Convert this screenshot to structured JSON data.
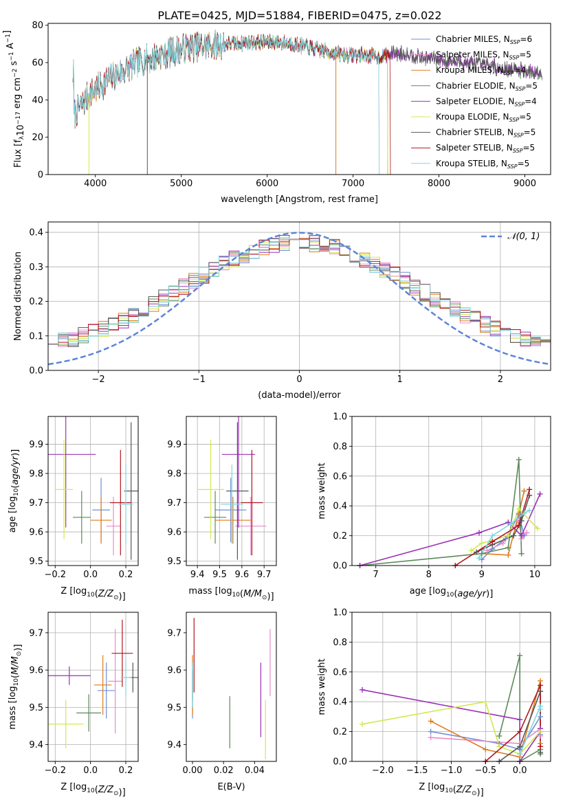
{
  "figure": {
    "title": "PLATE=0425, MJD=51884, FIBERID=0475, z=0.022"
  },
  "models": [
    {
      "name": "Chabrier MILES",
      "nssp": "6",
      "color": "#6c8fd6"
    },
    {
      "name": "Salpeter MILES",
      "nssp": "5",
      "color": "#e98bc9"
    },
    {
      "name": "Kroupa MILES",
      "nssp": "4",
      "color": "#e07b1c"
    },
    {
      "name": "Chabrier ELODIE",
      "nssp": "5",
      "color": "#5a8a5a"
    },
    {
      "name": "Salpeter ELODIE",
      "nssp": "4",
      "color": "#9b30b6"
    },
    {
      "name": "Kroupa ELODIE",
      "nssp": "5",
      "color": "#d4e84c"
    },
    {
      "name": "Chabrier STELIB",
      "nssp": "5",
      "color": "#555555"
    },
    {
      "name": "Salpeter STELIB",
      "nssp": "5",
      "color": "#b0151d"
    },
    {
      "name": "Kroupa STELIB",
      "nssp": "5",
      "color": "#7fd8df"
    }
  ],
  "chart_data": [
    {
      "id": "spectrum",
      "type": "line",
      "xlabel": "wavelength [Angstrom, rest frame]",
      "ylabel": "Flux [f_λ 10^-17 erg cm^-2 s^-1 A^-1]",
      "xlim": [
        3450,
        9300
      ],
      "ylim": [
        0,
        81
      ],
      "xticks": [
        4000,
        5000,
        6000,
        7000,
        8000,
        9000
      ],
      "yticks": [
        0,
        20,
        40,
        60,
        80
      ],
      "continuum": [
        [
          3750,
          32
        ],
        [
          3850,
          38
        ],
        [
          3950,
          44
        ],
        [
          4050,
          47
        ],
        [
          4150,
          51
        ],
        [
          4300,
          55
        ],
        [
          4500,
          60
        ],
        [
          4700,
          63
        ],
        [
          4900,
          66
        ],
        [
          5100,
          68
        ],
        [
          5300,
          69
        ],
        [
          5500,
          70
        ],
        [
          5700,
          70.5
        ],
        [
          5900,
          71
        ],
        [
          6100,
          71
        ],
        [
          6300,
          70
        ],
        [
          6500,
          68
        ],
        [
          6700,
          66
        ],
        [
          6900,
          64
        ],
        [
          7100,
          64
        ],
        [
          7300,
          63
        ],
        [
          7500,
          65
        ],
        [
          7700,
          64
        ],
        [
          7900,
          62
        ],
        [
          8100,
          61
        ],
        [
          8300,
          60
        ],
        [
          8500,
          59
        ],
        [
          8700,
          57
        ],
        [
          8900,
          56
        ],
        [
          9100,
          55
        ],
        [
          9200,
          54
        ]
      ],
      "end_wavelength": [
        7400,
        7300,
        7400,
        9200,
        9200,
        7400,
        9200,
        7430,
        7300
      ],
      "grid": false,
      "legend": "upper right"
    },
    {
      "id": "residuals",
      "type": "histogram",
      "xlabel": "(data-model)/error",
      "ylabel": "Normed distribution",
      "xlim": [
        -2.5,
        2.5
      ],
      "ylim": [
        0,
        0.43
      ],
      "xticks": [
        -2,
        -1,
        0,
        1,
        2
      ],
      "yticks": [
        0.0,
        0.1,
        0.2,
        0.3,
        0.4
      ],
      "bins": 50,
      "reference": {
        "name": "𝒩(0, 1)",
        "mean": 0,
        "sigma": 1,
        "color": "#5b84d8"
      },
      "grid": true,
      "legend": "upper right"
    },
    {
      "id": "age-vs-Z",
      "type": "errorbar",
      "xlabel": "Z [log10(Z/Z⊙)]",
      "ylabel": "age  [log10(age/yr)]",
      "xlim": [
        -0.24,
        0.27
      ],
      "ylim": [
        9.485,
        9.995
      ],
      "xticks": [
        -0.2,
        0.0,
        0.2
      ],
      "yticks": [
        9.5,
        9.6,
        9.7,
        9.8,
        9.9
      ],
      "points": [
        {
          "x": 0.06,
          "xerr": 0.05,
          "y": 9.675,
          "yerr": 0.11
        },
        {
          "x": 0.13,
          "xerr": 0.04,
          "y": 9.62,
          "yerr": 0.1
        },
        {
          "x": 0.06,
          "xerr": 0.06,
          "y": 9.64,
          "yerr": 0.08
        },
        {
          "x": -0.05,
          "xerr": 0.05,
          "y": 9.65,
          "yerr": 0.09
        },
        {
          "x": -0.14,
          "xerr": 0.17,
          "y": 9.865,
          "yerr": 0.25
        },
        {
          "x": -0.15,
          "xerr": 0.05,
          "y": 9.745,
          "yerr": 0.17
        },
        {
          "x": 0.23,
          "xerr": 0.04,
          "y": 9.74,
          "yerr": 0.235
        },
        {
          "x": 0.17,
          "xerr": 0.06,
          "y": 9.7,
          "yerr": 0.18
        },
        {
          "x": 0.2,
          "xerr": 0.04,
          "y": 9.695,
          "yerr": 0.135
        }
      ],
      "grid": true
    },
    {
      "id": "age-vs-mass",
      "type": "errorbar",
      "xlabel": "mass [log10(M/M⊙)]",
      "ylabel": "",
      "xlim": [
        9.35,
        9.755
      ],
      "ylim": [
        9.485,
        9.995
      ],
      "xticks": [
        9.4,
        9.5,
        9.6,
        9.7
      ],
      "yticks": [
        9.5,
        9.6,
        9.7,
        9.8,
        9.9
      ],
      "points": [
        {
          "x": 9.55,
          "xerr": 0.07,
          "y": 9.675,
          "yerr": 0.11
        },
        {
          "x": 9.64,
          "xerr": 0.07,
          "y": 9.62,
          "yerr": 0.1
        },
        {
          "x": 9.56,
          "xerr": 0.08,
          "y": 9.64,
          "yerr": 0.08
        },
        {
          "x": 9.48,
          "xerr": 0.05,
          "y": 9.65,
          "yerr": 0.09
        },
        {
          "x": 9.585,
          "xerr": 0.075,
          "y": 9.865,
          "yerr": 0.25
        },
        {
          "x": 9.46,
          "xerr": 0.06,
          "y": 9.745,
          "yerr": 0.17
        },
        {
          "x": 9.58,
          "xerr": 0.05,
          "y": 9.74,
          "yerr": 0.235
        },
        {
          "x": 9.645,
          "xerr": 0.05,
          "y": 9.7,
          "yerr": 0.18
        },
        {
          "x": 9.555,
          "xerr": 0.05,
          "y": 9.695,
          "yerr": 0.135
        }
      ],
      "grid": true
    },
    {
      "id": "weight-vs-age",
      "type": "line",
      "xlabel": "age  [log10(age/yr)]",
      "ylabel": "mass weight",
      "xlim": [
        6.55,
        10.3
      ],
      "ylim": [
        0,
        1.0
      ],
      "xticks": [
        7,
        8,
        9,
        10
      ],
      "yticks": [
        0.0,
        0.2,
        0.4,
        0.6,
        0.8,
        1.0
      ],
      "series": [
        {
          "x": [
            9.0,
            9.2,
            9.45,
            9.7,
            9.8
          ],
          "y": [
            0.04,
            0.11,
            0.18,
            0.34,
            0.2
          ]
        },
        {
          "x": [
            9.1,
            9.4,
            9.7,
            9.75,
            9.85
          ],
          "y": [
            0.1,
            0.15,
            0.3,
            0.18,
            0.22
          ]
        },
        {
          "x": [
            9.0,
            9.5,
            9.7,
            9.8
          ],
          "y": [
            0.08,
            0.07,
            0.35,
            0.5
          ]
        },
        {
          "x": [
            6.7,
            9.0,
            9.5,
            9.7,
            9.75
          ],
          "y": [
            0.0,
            0.08,
            0.12,
            0.71,
            0.08
          ]
        },
        {
          "x": [
            6.7,
            8.95,
            9.5,
            9.75,
            10.1
          ],
          "y": [
            0.0,
            0.22,
            0.29,
            0.2,
            0.48
          ]
        },
        {
          "x": [
            8.8,
            9.0,
            9.5,
            9.7,
            10.05
          ],
          "y": [
            0.1,
            0.15,
            0.2,
            0.38,
            0.25
          ]
        },
        {
          "x": [
            8.9,
            9.2,
            9.6,
            9.75,
            9.9
          ],
          "y": [
            0.09,
            0.14,
            0.2,
            0.3,
            0.47
          ]
        },
        {
          "x": [
            8.5,
            9.2,
            9.7,
            9.9
          ],
          "y": [
            0.0,
            0.16,
            0.27,
            0.51
          ]
        },
        {
          "x": [
            8.95,
            9.2,
            9.55,
            9.8,
            9.9
          ],
          "y": [
            0.05,
            0.2,
            0.28,
            0.35,
            0.37
          ]
        }
      ],
      "grid": true
    },
    {
      "id": "mass-vs-Z",
      "type": "errorbar",
      "xlabel": "Z [log10(Z/Z⊙)]",
      "ylabel": "mass [log10(M/M⊙)]",
      "xlim": [
        -0.24,
        0.27
      ],
      "ylim": [
        9.355,
        9.755
      ],
      "xticks": [
        -0.2,
        0.0,
        0.2
      ],
      "yticks": [
        9.4,
        9.5,
        9.6,
        9.7
      ],
      "points": [
        {
          "x": 0.09,
          "xerr": 0.05,
          "y": 9.545,
          "yerr": 0.075
        },
        {
          "x": 0.14,
          "xerr": 0.04,
          "y": 9.57,
          "yerr": 0.14
        },
        {
          "x": 0.07,
          "xerr": 0.05,
          "y": 9.56,
          "yerr": 0.08
        },
        {
          "x": -0.01,
          "xerr": 0.07,
          "y": 9.485,
          "yerr": 0.05
        },
        {
          "x": -0.12,
          "xerr": 0.12,
          "y": 9.585,
          "yerr": 0.025
        },
        {
          "x": -0.14,
          "xerr": 0.1,
          "y": 9.455,
          "yerr": 0.065
        },
        {
          "x": 0.24,
          "xerr": 0.04,
          "y": 9.58,
          "yerr": 0.04
        },
        {
          "x": 0.18,
          "xerr": 0.06,
          "y": 9.645,
          "yerr": 0.09
        },
        {
          "x": 0.2,
          "xerr": 0.03,
          "y": 9.58,
          "yerr": 0.05
        }
      ],
      "grid": true
    },
    {
      "id": "mass-vs-ebv",
      "type": "errorbar",
      "xlabel": "E(B-V)",
      "ylabel": "",
      "xlim": [
        -0.004,
        0.054
      ],
      "ylim": [
        9.355,
        9.755
      ],
      "xticks": [
        0.0,
        0.02,
        0.04
      ],
      "yticks": [
        9.4,
        9.5,
        9.6,
        9.7
      ],
      "points": [
        {
          "x": 0.0,
          "y": 9.545,
          "yerr": 0.075
        },
        {
          "x": 0.05,
          "y": 9.62,
          "yerr": 0.09
        },
        {
          "x": 0.0,
          "y": 9.56,
          "yerr": 0.08
        },
        {
          "x": 0.024,
          "y": 9.46,
          "yerr": 0.07
        },
        {
          "x": 0.044,
          "y": 9.52,
          "yerr": 0.1
        },
        {
          "x": 0.047,
          "y": 9.44,
          "yerr": 0.08
        },
        {
          "x": 0.0,
          "y": 9.56,
          "yerr": 0.04
        },
        {
          "x": 0.001,
          "y": 9.64,
          "yerr": 0.1
        },
        {
          "x": 0.0,
          "y": 9.56,
          "yerr": 0.06
        }
      ],
      "grid": false
    },
    {
      "id": "weight-vs-Z",
      "type": "line",
      "xlabel": "Z [log10(Z/Z⊙)]",
      "ylabel": "mass weight",
      "xlim": [
        -2.45,
        0.45
      ],
      "ylim": [
        0,
        1.0
      ],
      "xticks": [
        -2.0,
        -1.5,
        -1.0,
        -0.5,
        0.0
      ],
      "yticks": [
        0.0,
        0.2,
        0.4,
        0.6,
        0.8,
        1.0
      ],
      "series": [
        {
          "x": [
            -1.3,
            -0.3,
            0.0,
            0.3,
            0.3
          ],
          "y": [
            0.2,
            0.12,
            0.08,
            0.3,
            0.18
          ]
        },
        {
          "x": [
            -1.3,
            0.0,
            0.3,
            0.3
          ],
          "y": [
            0.16,
            0.12,
            0.22,
            0.17
          ]
        },
        {
          "x": [
            -1.3,
            -0.5,
            0.0,
            0.3,
            0.3
          ],
          "y": [
            0.27,
            0.08,
            0.03,
            0.54,
            0.12
          ]
        },
        {
          "x": [
            -0.3,
            0.0,
            0.0,
            0.3,
            0.3
          ],
          "y": [
            0.17,
            0.71,
            0.0,
            0.08,
            0.05
          ]
        },
        {
          "x": [
            -2.3,
            0.0,
            0.0,
            0.3,
            0.3
          ],
          "y": [
            0.48,
            0.28,
            0.0,
            0.2,
            0.22
          ]
        },
        {
          "x": [
            -2.3,
            -0.5,
            -0.3,
            0.0,
            0.3
          ],
          "y": [
            0.25,
            0.4,
            0.1,
            0.05,
            0.2
          ]
        },
        {
          "x": [
            -0.3,
            0.0,
            0.3,
            0.3
          ],
          "y": [
            0.0,
            0.1,
            0.47,
            0.06
          ]
        },
        {
          "x": [
            -0.5,
            0.0,
            0.3,
            0.3
          ],
          "y": [
            0.0,
            0.2,
            0.51,
            0.1
          ]
        },
        {
          "x": [
            0.0,
            0.3,
            0.3
          ],
          "y": [
            0.05,
            0.37,
            0.35
          ]
        }
      ],
      "grid": true
    }
  ]
}
